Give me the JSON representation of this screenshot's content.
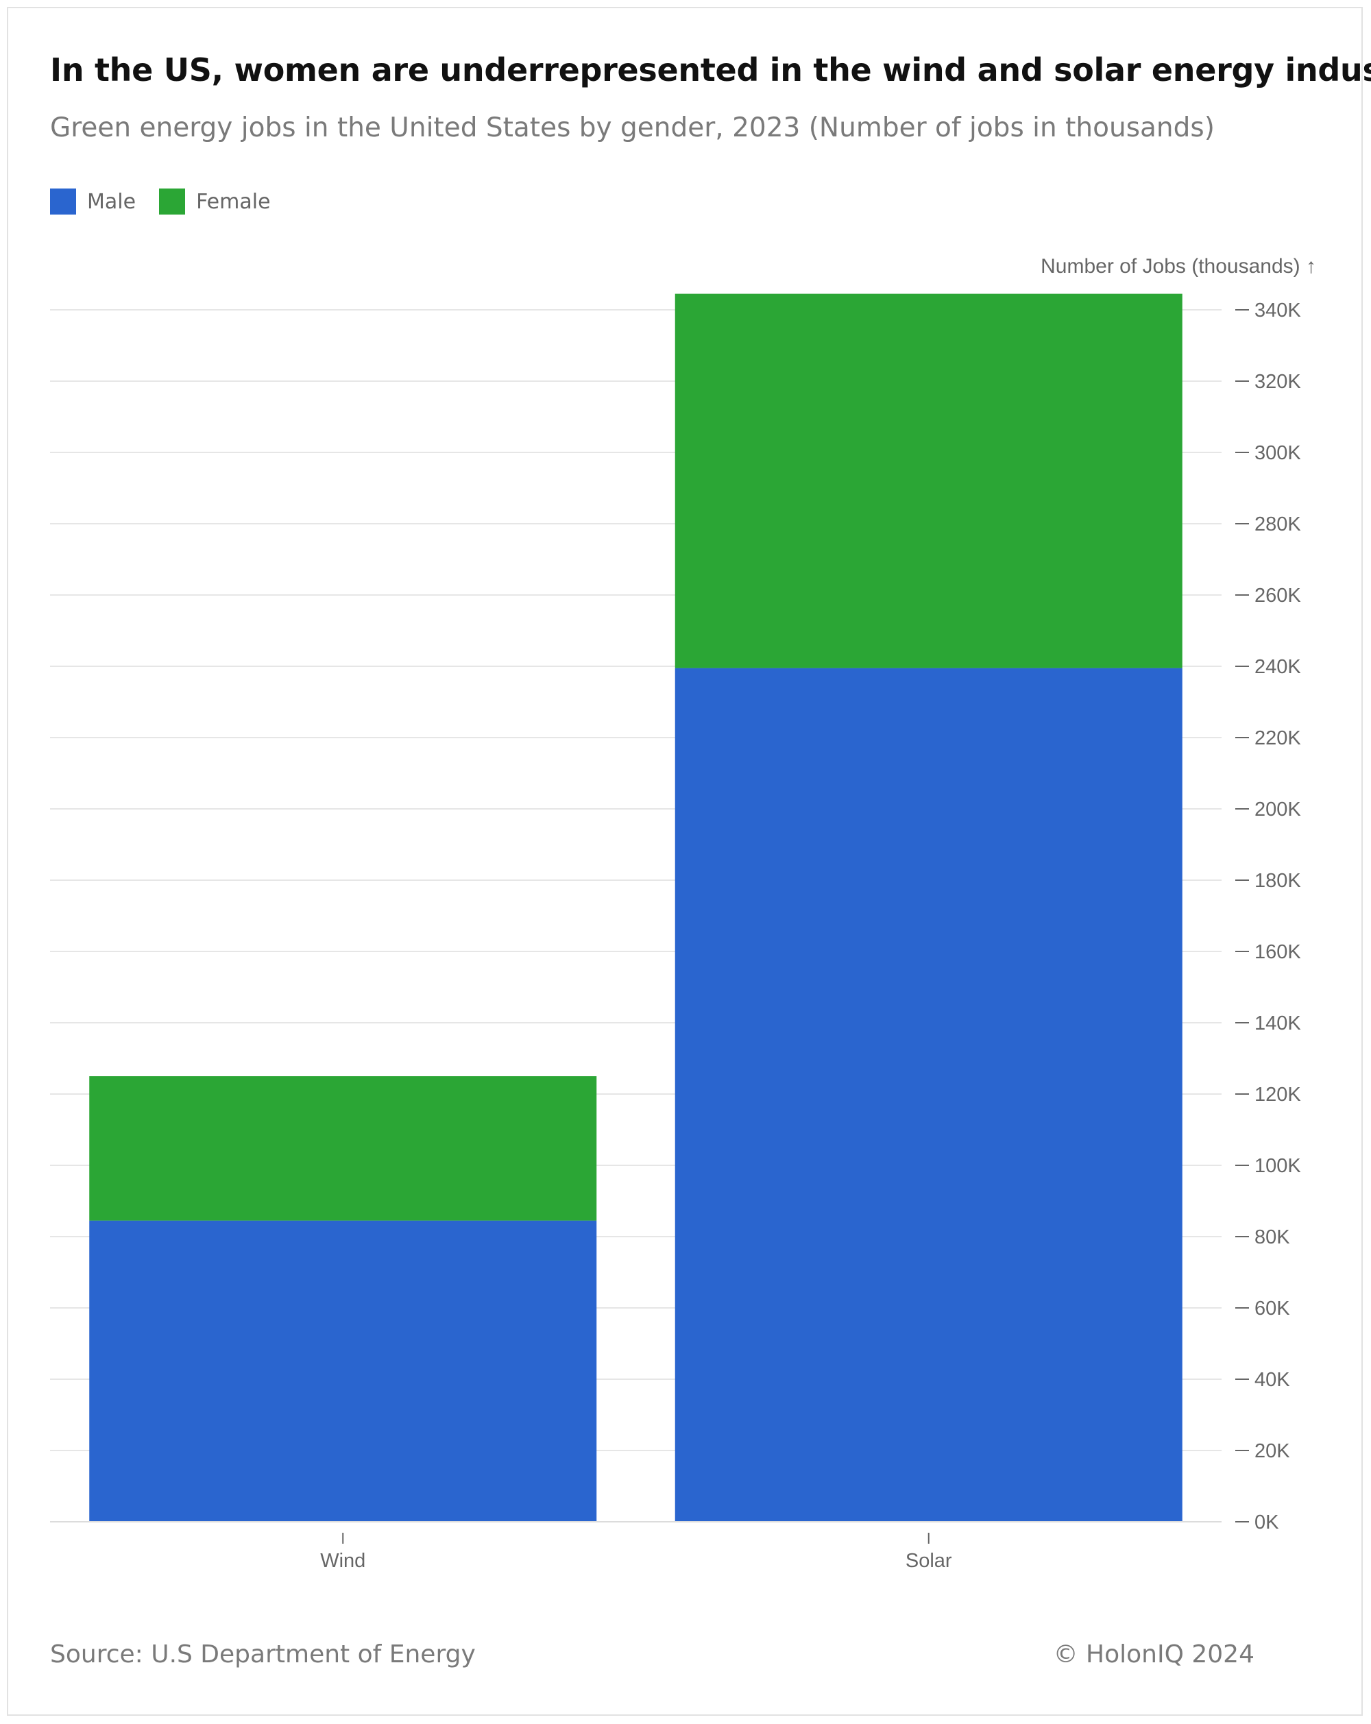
{
  "chart_data": {
    "type": "bar",
    "stacked": true,
    "title": "In the US, women are underrepresented in the wind and solar energy industry",
    "subtitle": "Green energy jobs in the United States by gender, 2023 (Number of jobs in thousands)",
    "ylabel": "Number of Jobs (thousands) ↑",
    "categories": [
      "Wind",
      "Solar"
    ],
    "series": [
      {
        "name": "Male",
        "values": [
          84.5,
          239.5
        ],
        "color": "#2a65cf"
      },
      {
        "name": "Female",
        "values": [
          40.5,
          105
        ],
        "color": "#2ba635"
      }
    ],
    "ylim": [
      0,
      340
    ],
    "yticks": [
      0,
      20,
      40,
      60,
      80,
      100,
      120,
      140,
      160,
      180,
      200,
      220,
      240,
      260,
      280,
      300,
      320,
      340
    ],
    "ytick_labels": [
      "0K",
      "20K",
      "40K",
      "60K",
      "80K",
      "100K",
      "120K",
      "140K",
      "160K",
      "180K",
      "200K",
      "220K",
      "240K",
      "260K",
      "280K",
      "300K",
      "320K",
      "340K"
    ],
    "y_axis_position": "right",
    "grid": true,
    "legend_position": "top-left"
  },
  "footer": {
    "source": "Source: U.S Department of Energy",
    "copyright": "© HolonIQ 2024"
  }
}
